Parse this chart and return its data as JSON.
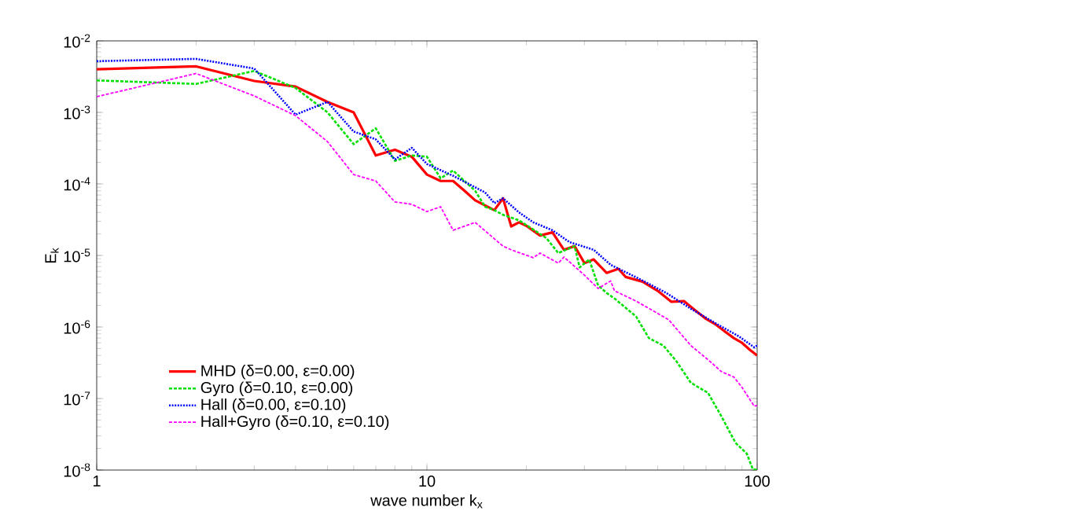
{
  "chart_data": {
    "type": "line",
    "xlabel": "wave number k$_{x}$",
    "ylabel": "E$_{k}$",
    "log": "xy",
    "grid": false,
    "legend": "bottom left",
    "xlim": [
      1,
      100
    ],
    "ylim": [
      1e-08,
      0.01
    ],
    "xticks": [
      1,
      10,
      100
    ],
    "yticks": [
      {
        "value": 1e-08,
        "label": "10$^{-8}$"
      },
      {
        "value": 1e-07,
        "label": "10$^{-7}$"
      },
      {
        "value": 1e-06,
        "label": "10$^{-6}$"
      },
      {
        "value": 1e-05,
        "label": "10$^{-5}$"
      },
      {
        "value": 0.0001,
        "label": "10$^{-4}$"
      },
      {
        "value": 0.001,
        "label": "10$^{-3}$"
      },
      {
        "value": 0.01,
        "label": "10$^{-2}$"
      }
    ],
    "series": [
      {
        "name": "MHD (δ=0.00, ε=0.00)",
        "color": "#ff0000",
        "line_style": "solid",
        "x": [
          1,
          2,
          3,
          4,
          5,
          6,
          7,
          8,
          9,
          10,
          11,
          12,
          13,
          14,
          16,
          17,
          18,
          19,
          20,
          22,
          24,
          26,
          28,
          30,
          32,
          35,
          38,
          40,
          45,
          50,
          55,
          60,
          65,
          70,
          75,
          80,
          85,
          90,
          95,
          100
        ],
        "values": [
          0.004,
          0.0044,
          0.00275,
          0.0023,
          0.0014,
          0.001,
          0.00025,
          0.0003,
          0.00024,
          0.000135,
          0.00011,
          0.00011,
          8e-05,
          5.9e-05,
          4.3e-05,
          6.3e-05,
          2.55e-05,
          2.9e-05,
          2.6e-05,
          1.9e-05,
          2.1e-05,
          1.2e-05,
          1.35e-05,
          7.8e-06,
          8.8e-06,
          5.7e-06,
          6.5e-06,
          5e-06,
          4.3e-06,
          3.2e-06,
          2.25e-06,
          2.3e-06,
          1.7e-06,
          1.3e-06,
          1.08e-06,
          8.6e-07,
          7e-07,
          6e-07,
          4.8e-07,
          4e-07
        ]
      },
      {
        "name": "Gyro (δ=0.10, ε=0.00)",
        "color": "#00e000",
        "line_style": "dashed",
        "x": [
          1,
          2,
          3,
          4,
          5,
          6,
          7,
          8,
          9,
          10,
          11,
          12,
          14,
          15,
          16,
          17,
          19,
          23,
          25,
          28,
          29,
          31,
          33,
          35,
          37,
          43,
          47,
          52,
          57,
          63,
          71,
          78,
          86,
          93,
          97,
          100
        ],
        "values": [
          0.0028,
          0.0025,
          0.0038,
          0.0022,
          0.001,
          0.00036,
          0.0006,
          0.00021,
          0.00025,
          0.00024,
          0.00012,
          0.000154,
          8e-05,
          4.8e-05,
          4.3e-05,
          3.7e-05,
          3.1e-05,
          1.75e-05,
          1.08e-05,
          1.35e-05,
          6.8e-06,
          8.8e-06,
          3.8e-06,
          3e-06,
          2.5e-06,
          1.4e-06,
          7e-07,
          5.5e-07,
          3.3e-07,
          1.66e-07,
          1.2e-07,
          5.6e-08,
          2.4e-08,
          1.7e-08,
          1.03e-08,
          1e-08
        ]
      },
      {
        "name": "Hall (δ=0.00, ε=0.10)",
        "color": "#0000ff",
        "line_style": "dotted",
        "x": [
          1,
          2,
          3,
          4,
          5,
          6,
          7,
          8,
          9,
          10,
          12,
          15,
          16,
          17,
          19,
          21,
          24,
          27,
          32,
          36,
          44,
          53,
          63,
          76,
          88,
          98,
          100
        ],
        "values": [
          0.0052,
          0.0056,
          0.0041,
          0.00093,
          0.0014,
          0.00054,
          0.00042,
          0.00022,
          0.00032,
          0.00019,
          0.00013,
          7.6e-05,
          5.4e-05,
          6.3e-05,
          4e-05,
          2.9e-05,
          2.25e-05,
          1.54e-05,
          1.2e-05,
          7.4e-06,
          4.7e-06,
          3e-06,
          1.8e-06,
          1.08e-06,
          7.4e-07,
          5.2e-07,
          5.5e-07
        ]
      },
      {
        "name": "Hall+Gyro (δ=0.10, ε=0.10)",
        "color": "#ff00ff",
        "line_style": "dashed",
        "x": [
          1,
          2,
          3,
          4,
          5,
          6,
          7,
          8,
          9,
          10,
          11,
          12,
          14,
          17,
          18,
          21,
          22,
          25,
          26,
          30,
          33,
          36,
          37,
          43,
          54,
          63,
          72,
          78,
          85,
          90,
          98,
          100
        ],
        "values": [
          0.00166,
          0.0035,
          0.0017,
          0.0009,
          0.00039,
          0.000135,
          0.00011,
          5.6e-05,
          5.2e-05,
          4.1e-05,
          4.8e-05,
          2.25e-05,
          2.9e-05,
          1.35e-05,
          1.2e-05,
          9.3e-06,
          1.08e-05,
          7.8e-06,
          9.5e-06,
          5.3e-06,
          3.45e-06,
          4.4e-06,
          3.2e-06,
          2.3e-06,
          1.26e-06,
          5.5e-07,
          3.3e-07,
          2.37e-07,
          2e-07,
          1.43e-07,
          7.8e-08,
          8e-08
        ]
      }
    ]
  }
}
